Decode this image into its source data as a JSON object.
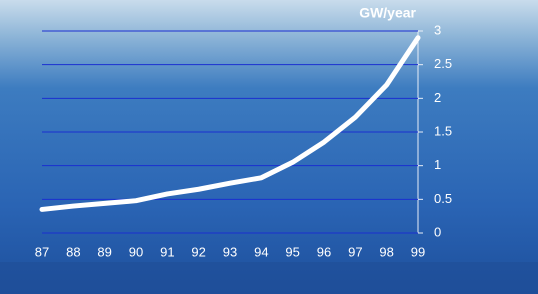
{
  "chart_data": {
    "type": "line",
    "y_axis_label": "GW/year",
    "categories": [
      "87",
      "88",
      "89",
      "90",
      "91",
      "92",
      "93",
      "94",
      "95",
      "96",
      "97",
      "98",
      "99"
    ],
    "values": [
      0.35,
      0.4,
      0.44,
      0.48,
      0.58,
      0.65,
      0.74,
      0.82,
      1.05,
      1.35,
      1.72,
      2.2,
      2.9
    ],
    "color": "#ffffff",
    "grid_color": "#1a2fd0",
    "ylim": [
      0,
      3
    ],
    "yticks": [
      0,
      0.5,
      1,
      1.5,
      2,
      2.5,
      3
    ],
    "grid": true,
    "y_axis_side": "right"
  }
}
